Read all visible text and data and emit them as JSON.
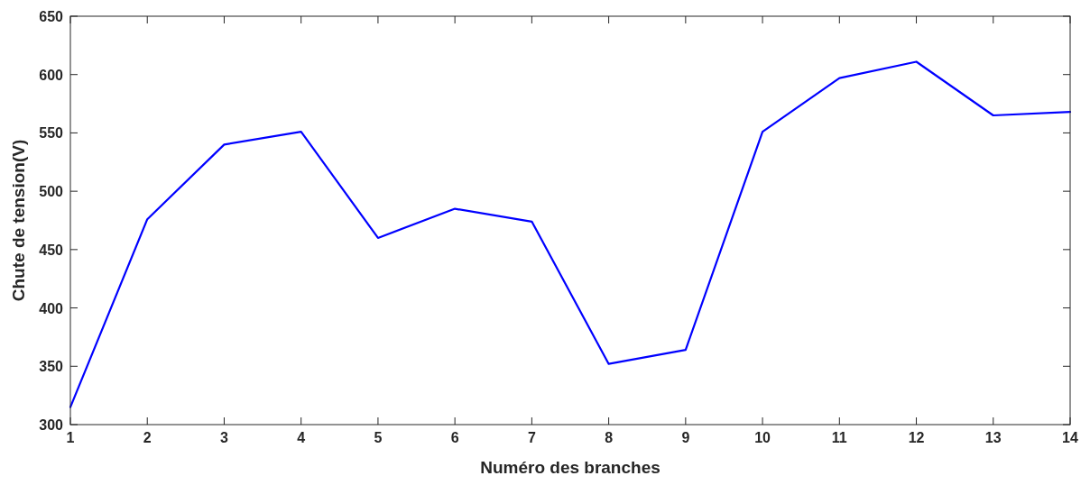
{
  "chart_data": {
    "type": "line",
    "xlabel": "Numéro des branches",
    "ylabel": "Chute de tension(V)",
    "x": [
      1,
      2,
      3,
      4,
      5,
      6,
      7,
      8,
      9,
      10,
      11,
      12,
      13,
      14
    ],
    "series": [
      {
        "color": "#0000ff",
        "values": [
          315,
          476,
          540,
          551,
          460,
          485,
          474,
          352,
          364,
          551,
          597,
          611,
          565,
          568
        ]
      }
    ],
    "xlim": [
      1,
      14
    ],
    "xticks": [
      1,
      2,
      3,
      4,
      5,
      6,
      7,
      8,
      9,
      10,
      11,
      12,
      13,
      14
    ],
    "ylim": [
      300,
      650
    ],
    "yticks": [
      300,
      350,
      400,
      450,
      500,
      550,
      600,
      650
    ],
    "grid": false,
    "marker": "none",
    "line_style": "solid"
  }
}
